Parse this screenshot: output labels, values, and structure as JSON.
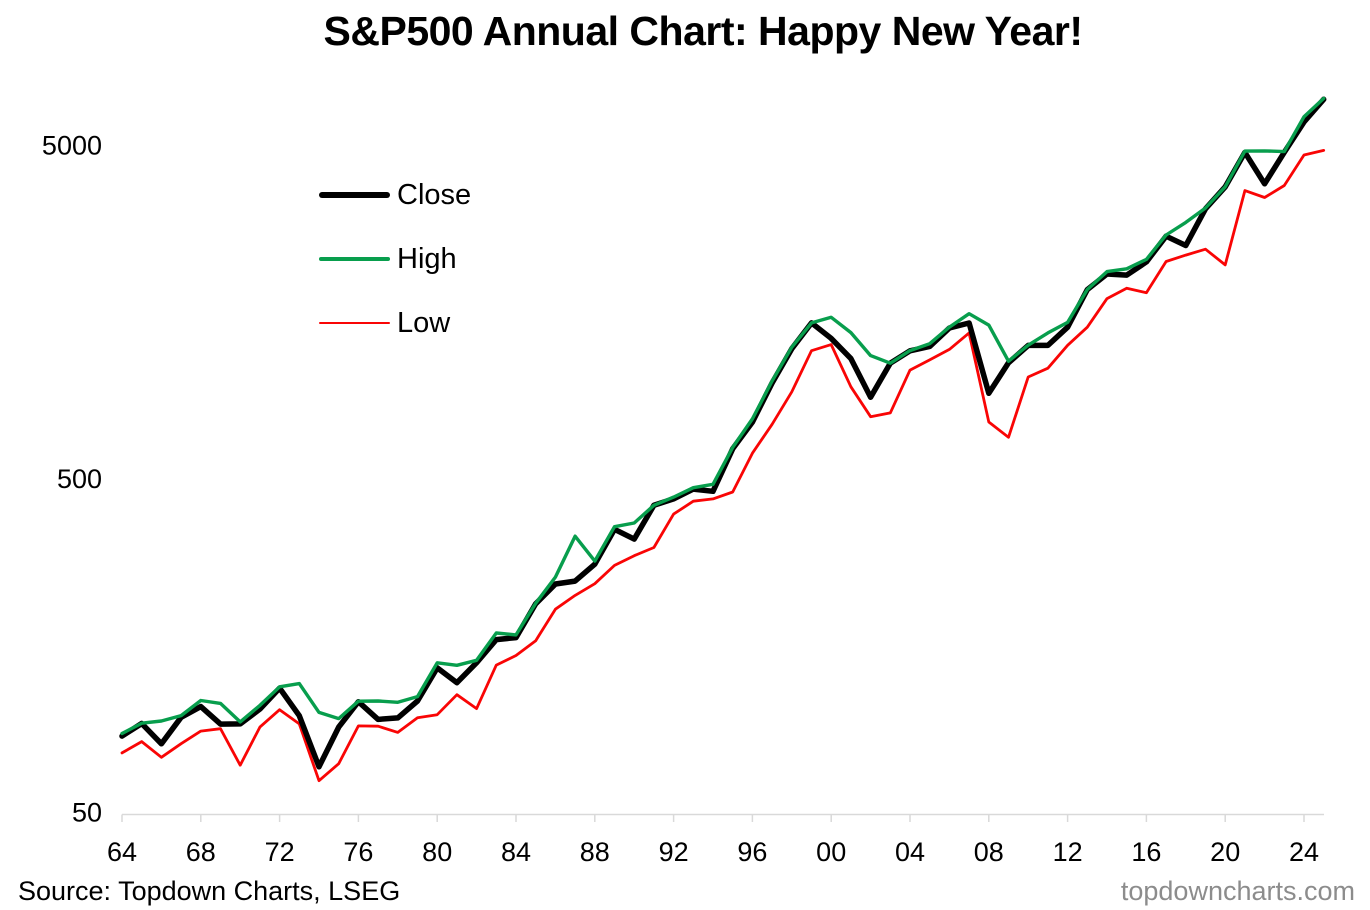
{
  "header": {
    "title": "S&P500 Annual Chart: Happy New Year!"
  },
  "footer": {
    "source": "Source: Topdown Charts, LSEG",
    "watermark": "topdowncharts.com",
    "watermark_color": "#8C8C8C"
  },
  "chart_data": {
    "type": "line",
    "title": "S&P500 Annual Chart: Happy New Year!",
    "xlabel": "",
    "ylabel": "",
    "y_scale": "log",
    "ylim": [
      50,
      7500
    ],
    "grid": false,
    "legend_position": "upper-left-inside",
    "axis_color": "#D9D9D9",
    "x": [
      1964,
      1965,
      1966,
      1967,
      1968,
      1969,
      1970,
      1971,
      1972,
      1973,
      1974,
      1975,
      1976,
      1977,
      1978,
      1979,
      1980,
      1981,
      1982,
      1983,
      1984,
      1985,
      1986,
      1987,
      1988,
      1989,
      1990,
      1991,
      1992,
      1993,
      1994,
      1995,
      1996,
      1997,
      1998,
      1999,
      2000,
      2001,
      2002,
      2003,
      2004,
      2005,
      2006,
      2007,
      2008,
      2009,
      2010,
      2011,
      2012,
      2013,
      2014,
      2015,
      2016,
      2017,
      2018,
      2019,
      2020,
      2021,
      2022,
      2023,
      2024,
      2025
    ],
    "x_ticks": [
      {
        "year": 1964,
        "label": "64"
      },
      {
        "year": 1968,
        "label": "68"
      },
      {
        "year": 1972,
        "label": "72"
      },
      {
        "year": 1976,
        "label": "76"
      },
      {
        "year": 1980,
        "label": "80"
      },
      {
        "year": 1984,
        "label": "84"
      },
      {
        "year": 1988,
        "label": "88"
      },
      {
        "year": 1992,
        "label": "92"
      },
      {
        "year": 1996,
        "label": "96"
      },
      {
        "year": 2000,
        "label": "00"
      },
      {
        "year": 2004,
        "label": "04"
      },
      {
        "year": 2008,
        "label": "08"
      },
      {
        "year": 2012,
        "label": "12"
      },
      {
        "year": 2016,
        "label": "16"
      },
      {
        "year": 2020,
        "label": "20"
      },
      {
        "year": 2024,
        "label": "24"
      }
    ],
    "y_ticks": [
      {
        "value": 5000,
        "label": "5000"
      },
      {
        "value": 500,
        "label": "500"
      },
      {
        "value": 50,
        "label": "50"
      }
    ],
    "series": [
      {
        "name": "Close",
        "color": "#000000",
        "width": 5.5,
        "values": [
          84.75,
          92.43,
          80.33,
          96.47,
          103.86,
          92.06,
          92.15,
          102.09,
          118.05,
          97.55,
          68.56,
          90.19,
          107.46,
          95.1,
          96.11,
          107.94,
          135.76,
          122.55,
          140.64,
          164.93,
          167.24,
          211.28,
          242.17,
          247.08,
          277.72,
          353.4,
          330.22,
          417.09,
          435.71,
          466.45,
          459.27,
          615.93,
          740.74,
          970.43,
          1229.23,
          1469.25,
          1320.28,
          1148.08,
          879.82,
          1111.92,
          1211.92,
          1248.29,
          1418.3,
          1468.36,
          903.25,
          1115.1,
          1257.64,
          1257.6,
          1426.19,
          1848.36,
          2058.9,
          2043.94,
          2238.83,
          2673.61,
          2506.85,
          3230.78,
          3756.07,
          4766.18,
          3839.5,
          4769.83,
          5881.63,
          6880.0
        ]
      },
      {
        "name": "High",
        "color": "#089E4D",
        "width": 3.4,
        "values": [
          86.28,
          92.63,
          94.06,
          97.59,
          108.37,
          106.16,
          93.46,
          104.77,
          119.12,
          121.74,
          99.8,
          95.61,
          107.83,
          107.97,
          106.99,
          111.27,
          140.52,
          138.12,
          143.02,
          172.65,
          170.41,
          212.02,
          254.0,
          336.77,
          283.66,
          359.8,
          368.95,
          417.09,
          441.28,
          470.94,
          482.0,
          621.69,
          757.03,
          983.79,
          1241.81,
          1469.25,
          1527.46,
          1373.73,
          1172.51,
          1111.92,
          1213.55,
          1272.74,
          1427.09,
          1565.15,
          1447.16,
          1127.78,
          1259.78,
          1370.58,
          1474.51,
          1849.44,
          2093.55,
          2134.72,
          2277.53,
          2694.97,
          2940.91,
          3247.93,
          3760.2,
          4808.93,
          4818.62,
          4793.3,
          6099.97,
          6920.34
        ]
      },
      {
        "name": "Low",
        "color": "#F90505",
        "width": 2.8,
        "values": [
          75.43,
          81.6,
          73.2,
          80.38,
          87.72,
          89.2,
          69.29,
          90.16,
          101.67,
          92.16,
          62.28,
          70.04,
          90.9,
          90.71,
          86.9,
          96.13,
          98.22,
          112.77,
          102.42,
          138.34,
          147.82,
          163.68,
          203.49,
          223.92,
          242.63,
          275.31,
          294.51,
          311.49,
          392.41,
          429.05,
          435.86,
          457.2,
          597.29,
          729.55,
          912.83,
          1212.19,
          1264.74,
          944.75,
          768.63,
          788.9,
          1060.72,
          1137.5,
          1223.69,
          1370.6,
          741.02,
          666.79,
          1010.91,
          1074.77,
          1258.86,
          1426.19,
          1737.92,
          1867.01,
          1810.1,
          2245.13,
          2346.58,
          2443.96,
          2191.86,
          3662.71,
          3491.58,
          3794.33,
          4682.11,
          4835.04
        ]
      }
    ]
  }
}
